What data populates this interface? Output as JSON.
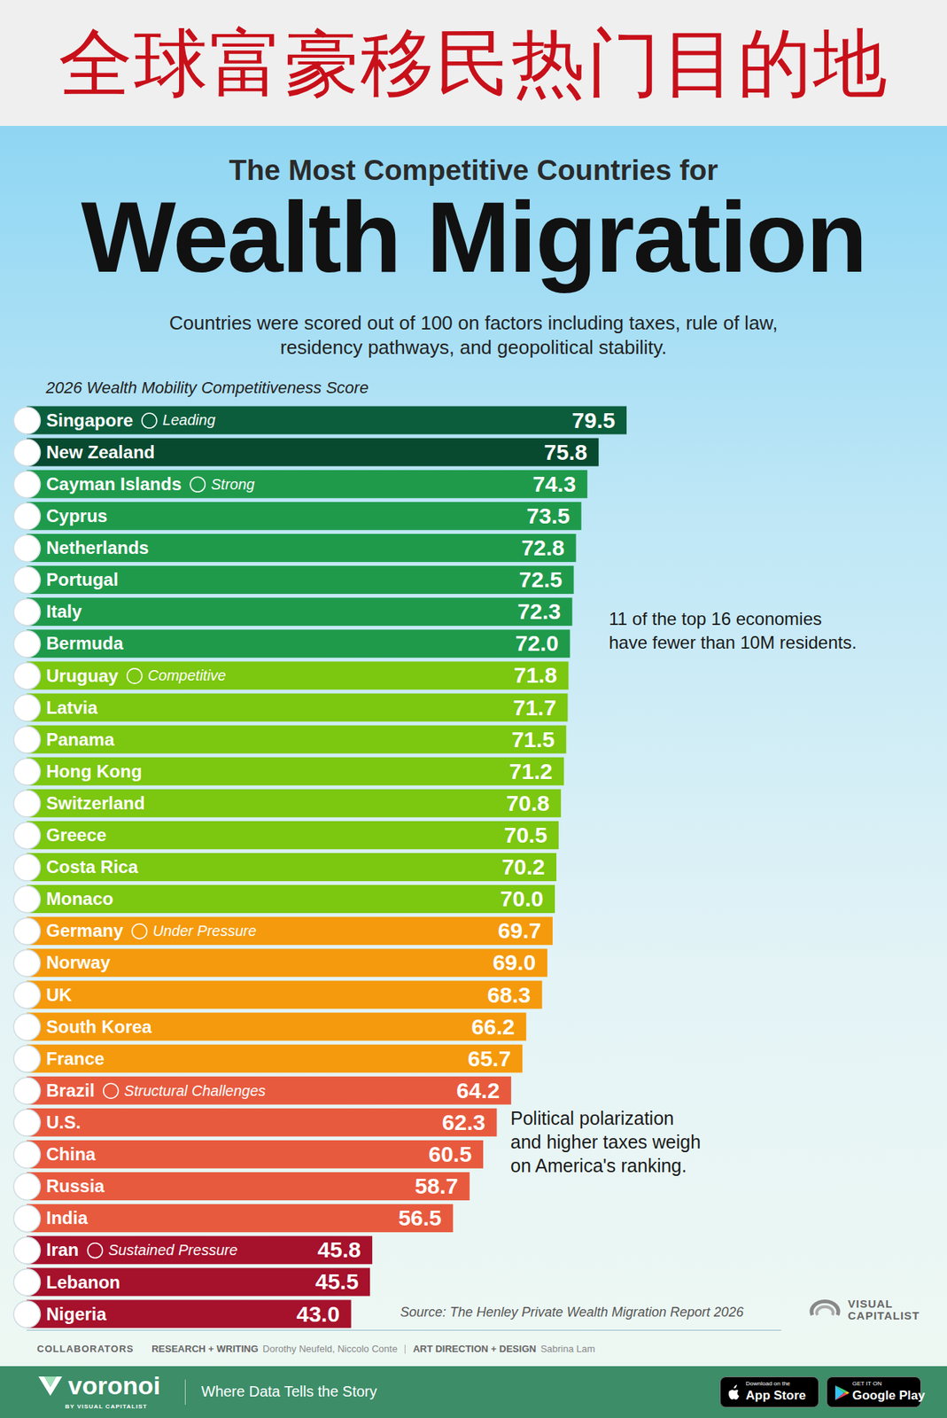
{
  "banner": "全球富豪移民热门目的地",
  "chart_data": {
    "type": "bar",
    "orientation": "horizontal",
    "kicker": "The Most Competitive Countries for",
    "title": "Wealth Migration",
    "subtitle": "Countries were scored out of 100 on factors including taxes, rule of law, residency pathways, and geopolitical stability.",
    "xlabel": "2026 Wealth Mobility Competitiveness Score",
    "categories": [
      "Singapore",
      "New Zealand",
      "Cayman Islands",
      "Cyprus",
      "Netherlands",
      "Portugal",
      "Italy",
      "Bermuda",
      "Uruguay",
      "Latvia",
      "Panama",
      "Hong Kong",
      "Switzerland",
      "Greece",
      "Costa Rica",
      "Monaco",
      "Germany",
      "Norway",
      "UK",
      "South Korea",
      "France",
      "Brazil",
      "U.S.",
      "China",
      "Russia",
      "India",
      "Iran",
      "Lebanon",
      "Nigeria"
    ],
    "values": [
      79.5,
      75.8,
      74.3,
      73.5,
      72.8,
      72.5,
      72.3,
      72.0,
      71.8,
      71.7,
      71.5,
      71.2,
      70.8,
      70.5,
      70.2,
      70.0,
      69.7,
      69.0,
      68.3,
      66.2,
      65.7,
      64.2,
      62.3,
      60.5,
      58.7,
      56.5,
      45.8,
      45.5,
      43.0
    ],
    "value_labels": [
      "79.5",
      "75.8",
      "74.3",
      "73.5",
      "72.8",
      "72.5",
      "72.3",
      "72.0",
      "71.8",
      "71.7",
      "71.5",
      "71.2",
      "70.8",
      "70.5",
      "70.2",
      "70.0",
      "69.7",
      "69.0",
      "68.3",
      "66.2",
      "65.7",
      "64.2",
      "62.3",
      "60.5",
      "58.7",
      "56.5",
      "45.8",
      "45.5",
      "43.0"
    ],
    "colors": [
      "#0b5d3b",
      "#084a2f",
      "#1f9a4b",
      "#1f9a4b",
      "#1f9a4b",
      "#1f9a4b",
      "#1f9a4b",
      "#1f9a4b",
      "#7cc70f",
      "#7cc70f",
      "#7cc70f",
      "#7cc70f",
      "#7cc70f",
      "#7cc70f",
      "#7cc70f",
      "#7cc70f",
      "#f59a0c",
      "#f59a0c",
      "#f59a0c",
      "#f59a0c",
      "#f59a0c",
      "#e85a3e",
      "#e85a3e",
      "#e85a3e",
      "#e85a3e",
      "#e85a3e",
      "#a6112c",
      "#a6112c",
      "#a6112c"
    ],
    "xlim": [
      0,
      100
    ],
    "xticks": [],
    "tick_labels": false,
    "grid": false,
    "data_labels": true,
    "tiers": [
      {
        "text": "Leading",
        "category": "Singapore"
      },
      {
        "text": "Strong",
        "category": "Cayman Islands"
      },
      {
        "text": "Competitive",
        "category": "Uruguay"
      },
      {
        "text": "Under Pressure",
        "category": "Germany"
      },
      {
        "text": "Structural Challenges",
        "category": "Brazil"
      },
      {
        "text": "Sustained Pressure",
        "category": "Iran"
      }
    ],
    "callouts": [
      {
        "lines": [
          "11 of the top 16 economies",
          "have fewer than 10M residents."
        ]
      },
      {
        "lines": [
          "Political polarization",
          "and higher taxes weigh",
          "on America's ranking."
        ]
      }
    ],
    "source": "Source: The Henley Private Wealth Migration Report 2026"
  },
  "logo": "VISUAL CAPITALIST",
  "credits": {
    "heading": "COLLABORATORS",
    "entries": [
      {
        "role": "RESEARCH + WRITING",
        "names": "Dorothy Neufeld, Niccolo Conte"
      },
      {
        "role": "ART DIRECTION + DESIGN",
        "names": "Sabrina Lam"
      }
    ]
  },
  "footer": {
    "brand": "voronoi",
    "byline": "BY VISUAL CAPITALIST",
    "tagline": "Where Data Tells the Story",
    "badges": [
      {
        "small": "Download on the",
        "large": "App Store"
      },
      {
        "small": "GET IT ON",
        "large": "Google Play"
      }
    ]
  }
}
